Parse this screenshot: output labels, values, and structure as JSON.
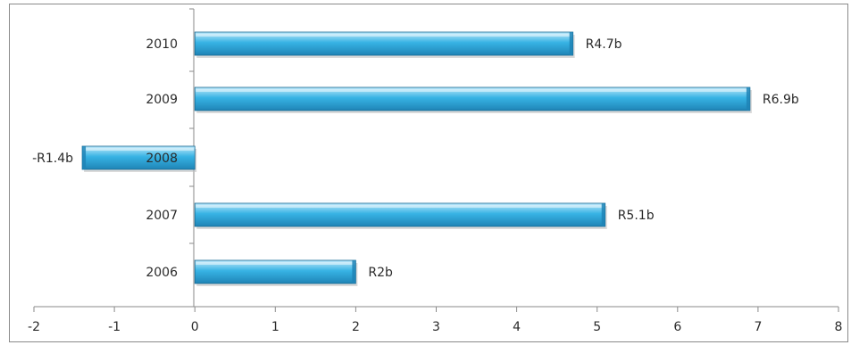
{
  "chart_data": {
    "type": "bar",
    "orientation": "horizontal",
    "categories": [
      "2010",
      "2009",
      "2008",
      "2007",
      "2006"
    ],
    "values": [
      4.7,
      6.9,
      -1.4,
      5.1,
      2.0
    ],
    "data_labels": [
      "R4.7b",
      "R6.9b",
      "-R1.4b",
      "R5.1b",
      "R2b"
    ],
    "title": "",
    "xlabel": "",
    "ylabel": "",
    "xlim": [
      -2,
      8
    ],
    "x_ticks": [
      "-2",
      "-1",
      "0",
      "1",
      "2",
      "3",
      "4",
      "5",
      "6",
      "7",
      "8"
    ],
    "grid": false,
    "legend": "none",
    "colors": {
      "bar_top": "#bfe9fb",
      "bar_mid": "#37b3e4",
      "bar_bottom": "#1f84b6",
      "bar_edge": "#176a93",
      "axis": "#8a8a8a",
      "text": "#2a2a2a"
    }
  }
}
